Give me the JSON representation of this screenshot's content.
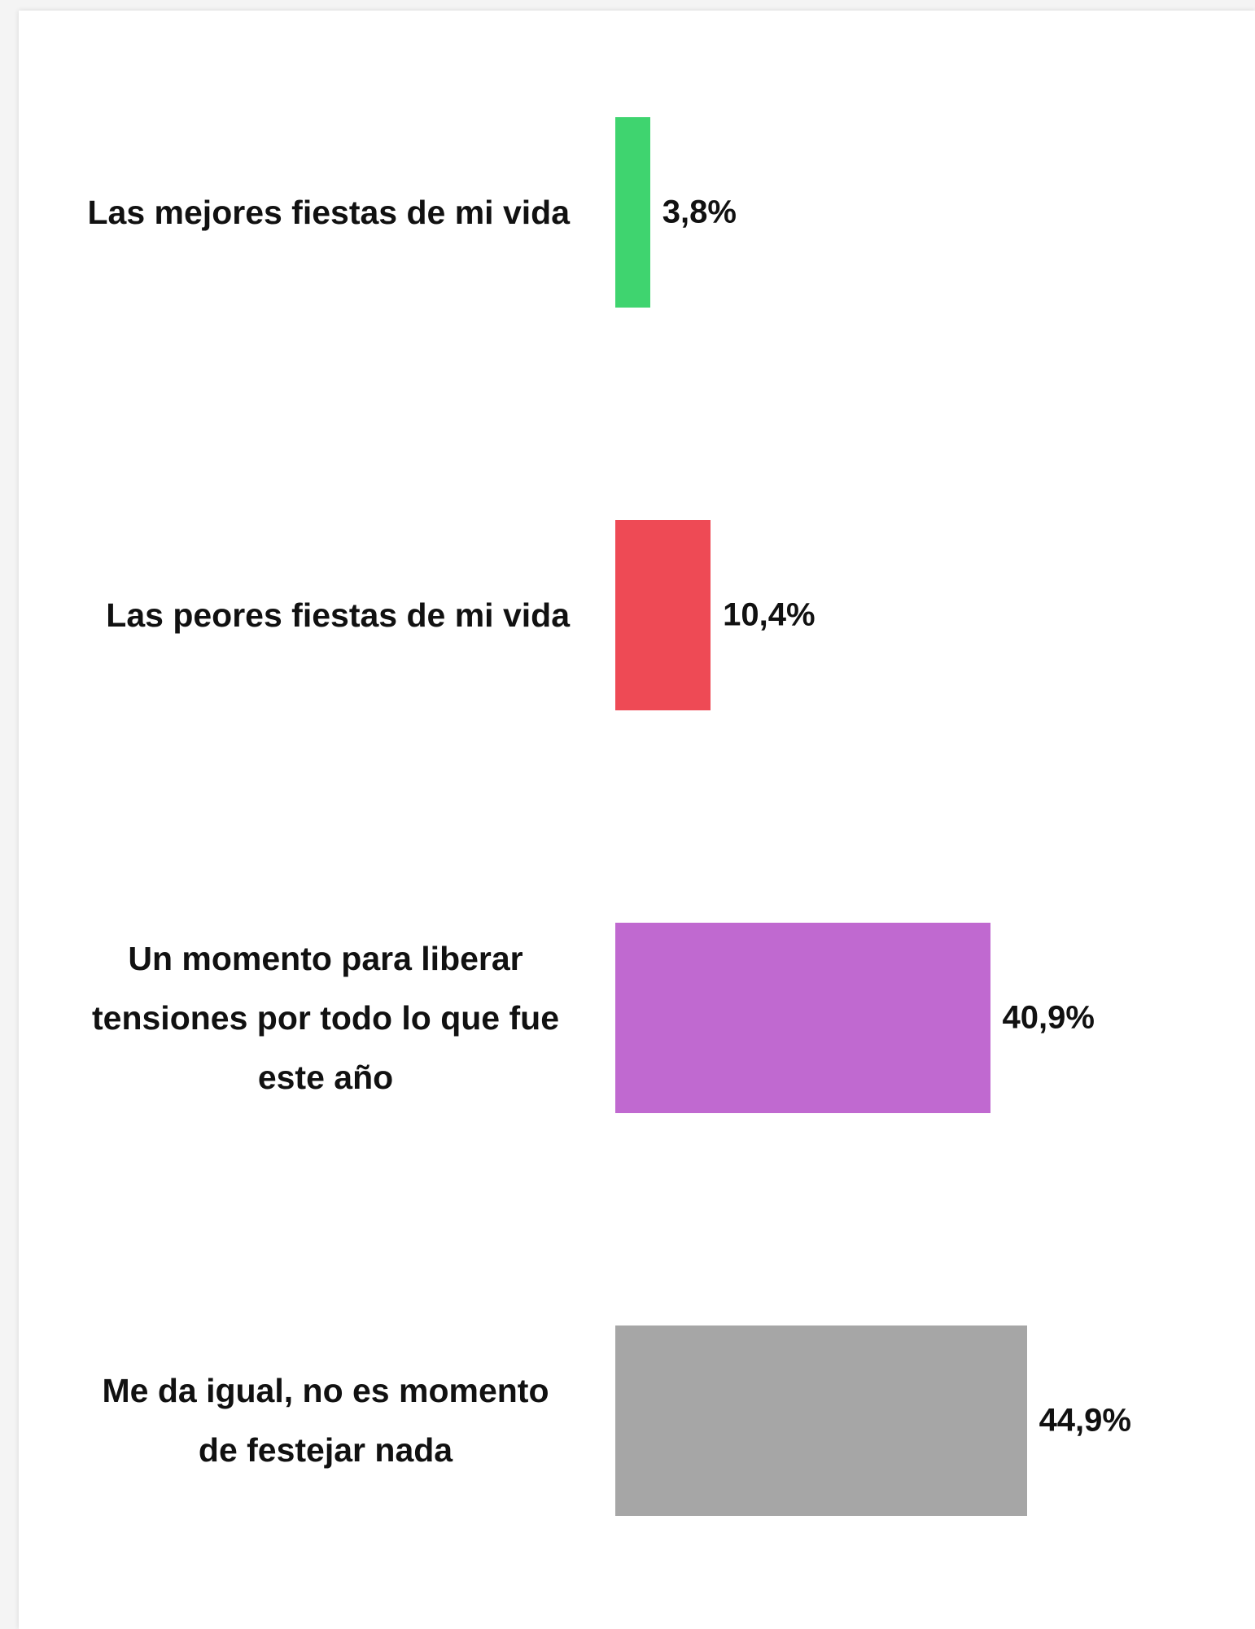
{
  "chart_data": {
    "type": "bar",
    "orientation": "horizontal",
    "categories": [
      "Las mejores fiestas de mi vida",
      "Las peores fiestas de mi vida",
      "Un momento para liberar tensiones por todo lo que fue este año",
      "Me da igual, no es momento de festejar nada"
    ],
    "values": [
      3.8,
      10.4,
      40.9,
      44.9
    ],
    "value_labels": [
      "3,8%",
      "10,4%",
      "40,9%",
      "44,9%"
    ],
    "colors": [
      "#3fd46f",
      "#ee4a55",
      "#c069d0",
      "#a6a6a6"
    ]
  }
}
